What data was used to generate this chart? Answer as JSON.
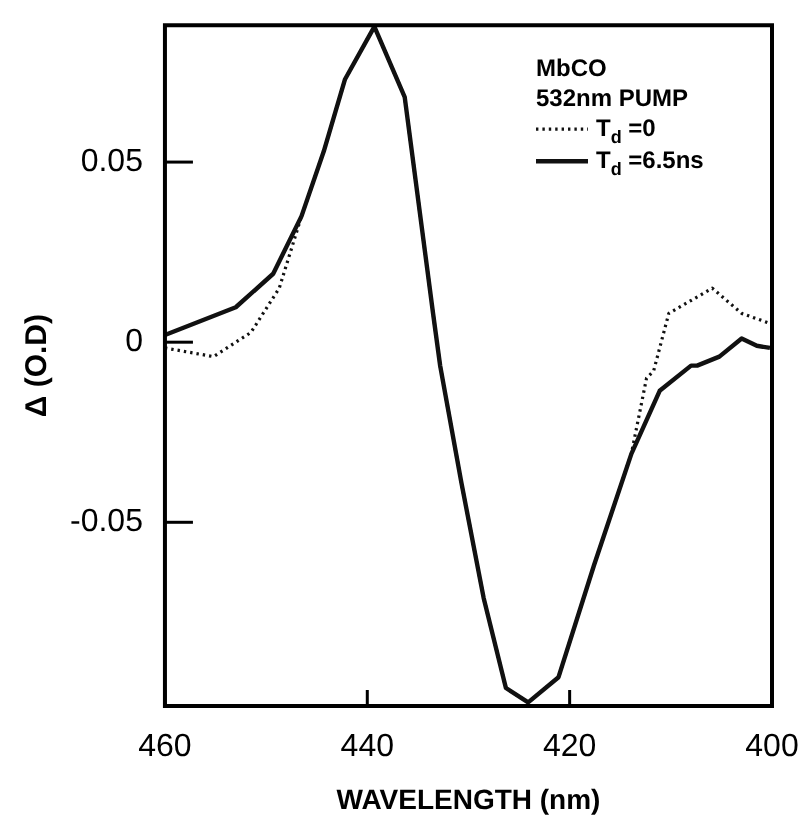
{
  "chart_data": {
    "type": "line",
    "xlabel": "WAVELENGTH (nm)",
    "ylabel": "Δ (O.D)",
    "legend_title": "MbCO\n532nm PUMP",
    "xlim": [
      460,
      400
    ],
    "xticks": [
      460,
      440,
      420,
      400
    ],
    "ylim": [
      -0.101,
      0.088
    ],
    "yticks": [
      {
        "value": 0.05,
        "label": "0.05"
      },
      0,
      -0.05
    ],
    "grid": false,
    "legend": "top right",
    "marker": "none",
    "series": [
      {
        "name": "T$_{d}$ =0",
        "color": "#111111",
        "line_style": "dotted",
        "x": [
          460,
          455.2,
          451.5,
          448.7,
          446.5,
          444.3,
          442.2,
          439.3,
          436.3,
          433.5,
          432.8,
          430.7,
          428.5,
          426.3,
          424.1,
          421.1,
          417.6,
          413.9,
          412.4,
          411.7,
          410.2,
          405.9,
          403,
          400.4
        ],
        "values": [
          -0.0016,
          -0.004,
          0.0027,
          0.015,
          0.035,
          0.053,
          0.073,
          0.0876,
          0.068,
          0.008,
          -0.0065,
          -0.039,
          -0.071,
          -0.096,
          -0.1,
          -0.093,
          -0.062,
          -0.031,
          -0.01,
          -0.008,
          0.008,
          0.015,
          0.008,
          0.0054
        ]
      },
      {
        "name": "T$_{d}$ =6.5ns",
        "color": "#111111",
        "line_style": "solid",
        "x": [
          460,
          453,
          449.3,
          446.5,
          444.3,
          442.2,
          439.3,
          436.3,
          433.5,
          432.8,
          430.7,
          428.5,
          426.3,
          424.1,
          421.1,
          417.6,
          413.9,
          411.1,
          408,
          407.4,
          405.2,
          403,
          401.5,
          400.2
        ],
        "values": [
          0.002,
          0.0097,
          0.019,
          0.035,
          0.053,
          0.073,
          0.0876,
          0.068,
          0.008,
          -0.0065,
          -0.039,
          -0.071,
          -0.096,
          -0.1,
          -0.093,
          -0.062,
          -0.031,
          -0.0135,
          -0.0065,
          -0.0065,
          -0.004,
          0.001,
          -0.001,
          -0.0016
        ]
      }
    ]
  }
}
